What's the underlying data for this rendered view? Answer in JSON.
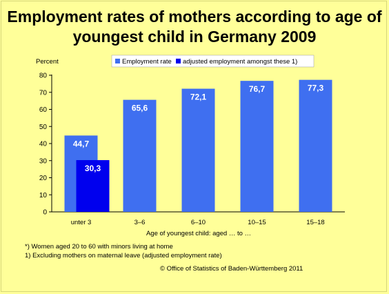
{
  "colors": {
    "background": "#ffff99",
    "employment_rate": "#3f6ff0",
    "adjusted": "#0000ee",
    "legend_background": "#ffffff"
  },
  "title_line1": "Employment rates of mothers according to age of",
  "title_line2": "youngest child in Germany 2009",
  "chart_data": {
    "type": "bar",
    "ylabel": "Percent",
    "xlabel": "Age of youngest child: aged … to …",
    "ylim": [
      0,
      80
    ],
    "yticks": [
      0,
      10,
      20,
      30,
      40,
      50,
      60,
      70,
      80
    ],
    "categories": [
      "unter 3",
      "3–6",
      "6–10",
      "10–15",
      "15–18"
    ],
    "series": [
      {
        "name": "Employment rate",
        "values": [
          44.7,
          65.6,
          72.1,
          76.7,
          77.3
        ],
        "labels": [
          "44,7",
          "65,6",
          "72,1",
          "76,7",
          "77,3"
        ]
      },
      {
        "name": "adjusted employment amongst these 1)",
        "values": [
          30.3,
          null,
          null,
          null,
          null
        ],
        "labels": [
          "30,3",
          "",
          "",
          "",
          ""
        ]
      }
    ],
    "grid": false,
    "legend_position": "top-right"
  },
  "footnotes": {
    "note_star": "*) Women aged 20 to 60 with minors living at home",
    "note_1": "1) Excluding mothers on maternal leave (adjusted employment rate)",
    "source": "© Office of Statistics of Baden-Württemberg 2011"
  }
}
